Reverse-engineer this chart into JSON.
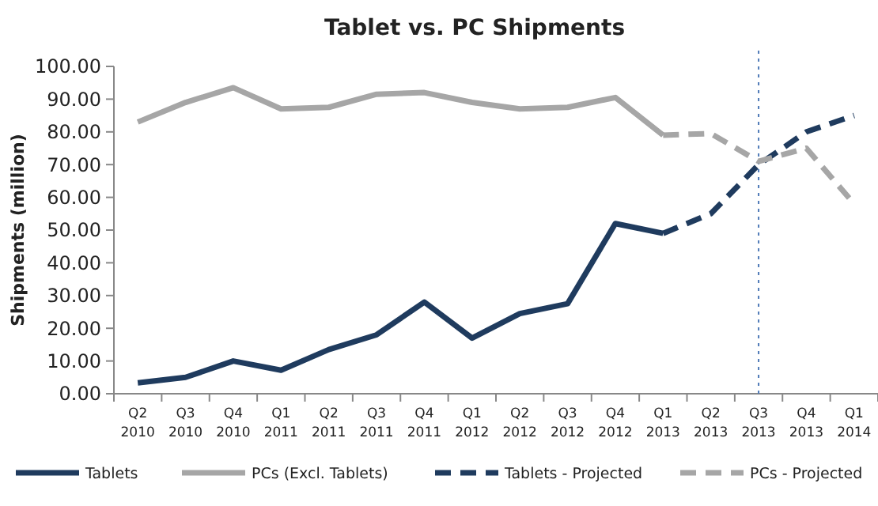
{
  "chart_data": {
    "type": "line",
    "title": "Tablet vs. PC Shipments",
    "ylabel": "Shipments (million)",
    "categories": [
      "Q2 2010",
      "Q3 2010",
      "Q4 2010",
      "Q1 2011",
      "Q2 2011",
      "Q3 2011",
      "Q4 2011",
      "Q1 2012",
      "Q2 2012",
      "Q3 2012",
      "Q4 2012",
      "Q1 2013",
      "Q2 2013",
      "Q3 2013",
      "Q4 2013",
      "Q1 2014"
    ],
    "series": [
      {
        "name": "Tablets",
        "color": "#1f3b5e",
        "line_style": "solid",
        "values": [
          3.3,
          5,
          10,
          7.2,
          13.5,
          18,
          28,
          17,
          24.5,
          27.5,
          52,
          49,
          null,
          null,
          null,
          null
        ]
      },
      {
        "name": "PCs (Excl. Tablets)",
        "color": "#a6a6a6",
        "line_style": "solid",
        "values": [
          83,
          89,
          93.5,
          87,
          87.5,
          91.5,
          92,
          89,
          87,
          87.5,
          90.5,
          79,
          null,
          null,
          null,
          null
        ]
      },
      {
        "name": "Tablets - Projected",
        "color": "#1f3b5e",
        "line_style": "dashed",
        "values": [
          null,
          null,
          null,
          null,
          null,
          null,
          null,
          null,
          null,
          null,
          null,
          49,
          55,
          70,
          80,
          85
        ]
      },
      {
        "name": "PCs - Projected",
        "color": "#a6a6a6",
        "line_style": "dashed",
        "values": [
          null,
          null,
          null,
          null,
          null,
          null,
          null,
          null,
          null,
          null,
          null,
          79,
          79.5,
          71,
          75,
          58
        ]
      }
    ],
    "ylim": [
      0,
      100
    ],
    "yticks": [
      {
        "value": 0,
        "label": "0.00"
      },
      {
        "value": 10,
        "label": "10.00"
      },
      {
        "value": 20,
        "label": "20.00"
      },
      {
        "value": 30,
        "label": "30.00"
      },
      {
        "value": 40,
        "label": "40.00"
      },
      {
        "value": 50,
        "label": "50.00"
      },
      {
        "value": 60,
        "label": "60.00"
      },
      {
        "value": 70,
        "label": "70.00"
      },
      {
        "value": 80,
        "label": "80.00"
      },
      {
        "value": 90,
        "label": "90.00"
      },
      {
        "value": 100,
        "label": "100.00"
      }
    ],
    "ref_lines": [
      {
        "axis": "x",
        "value": "Q3 2013",
        "color": "#4f7bb8",
        "line_style": "dotted"
      }
    ],
    "grid": false,
    "legend": "bottom",
    "marker": "none"
  }
}
